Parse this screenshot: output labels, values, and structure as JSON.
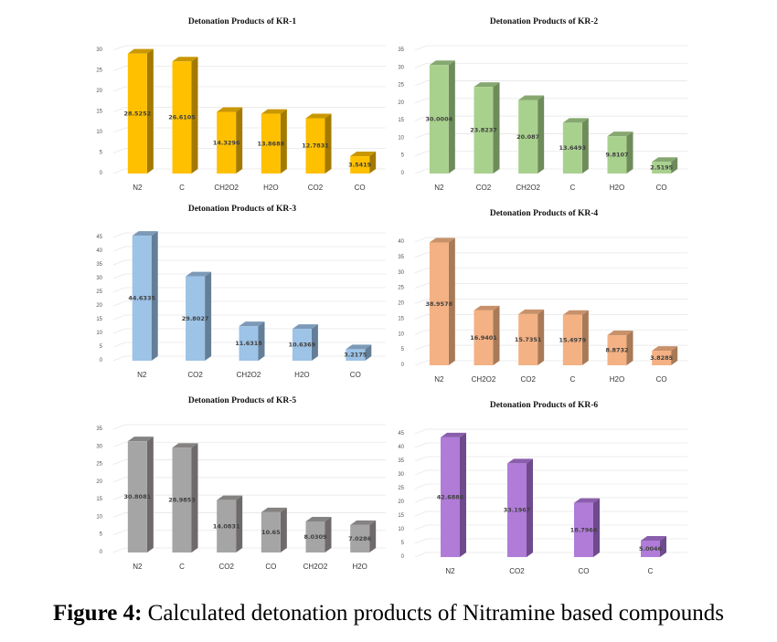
{
  "caption": {
    "label": "Figure 4:",
    "text": " Calculated detonation products of Nitramine based compounds"
  },
  "chart_data": [
    {
      "type": "bar",
      "title": "Detonation Products of KR-1",
      "categories": [
        "N2",
        "C",
        "CH2O2",
        "H2O",
        "CO2",
        "CO"
      ],
      "values": [
        28.5252,
        26.6105,
        14.3296,
        13.8688,
        12.7831,
        3.5419
      ],
      "ylim": [
        0,
        30
      ],
      "yticks": [
        0,
        5,
        10,
        15,
        20,
        25,
        30
      ],
      "colors": {
        "front": "#FFC000",
        "side": "#A37A00",
        "top": "#C99700"
      },
      "grid": true,
      "legend": "none"
    },
    {
      "type": "bar",
      "title": "Detonation Products of KR-2",
      "categories": [
        "N2",
        "CO2",
        "CH2O2",
        "C",
        "H2O",
        "CO"
      ],
      "values": [
        30.0004,
        23.8237,
        20.087,
        13.6493,
        9.8107,
        2.5195
      ],
      "ylim": [
        0,
        35
      ],
      "yticks": [
        0,
        5,
        10,
        15,
        20,
        25,
        30,
        35
      ],
      "colors": {
        "front": "#A9D18E",
        "side": "#6E8B5A",
        "top": "#86A870"
      },
      "grid": true,
      "legend": "none"
    },
    {
      "type": "bar",
      "title": "Detonation Products of KR-3",
      "categories": [
        "N2",
        "CO2",
        "CH2O2",
        "H2O",
        "CO"
      ],
      "values": [
        44.6335,
        29.8027,
        11.6318,
        10.6369,
        3.2175
      ],
      "ylim": [
        0,
        45
      ],
      "yticks": [
        0,
        5,
        10,
        15,
        20,
        25,
        30,
        35,
        40,
        45
      ],
      "colors": {
        "front": "#9DC3E6",
        "side": "#647E98",
        "top": "#7C9AB8"
      },
      "grid": true,
      "legend": "none"
    },
    {
      "type": "bar",
      "title": "Detonation Products of KR-4",
      "categories": [
        "N2",
        "CH2O2",
        "CO2",
        "C",
        "H2O",
        "CO"
      ],
      "values": [
        38.9578,
        16.9401,
        15.7351,
        15.4979,
        8.8732,
        3.8285
      ],
      "ylim": [
        0,
        40
      ],
      "yticks": [
        0,
        5,
        10,
        15,
        20,
        25,
        30,
        35,
        40
      ],
      "colors": {
        "front": "#F4B183",
        "side": "#A87A57",
        "top": "#C8916A"
      },
      "grid": true,
      "legend": "none"
    },
    {
      "type": "bar",
      "title": "Detonation Products of KR-5",
      "categories": [
        "N2",
        "C",
        "CO2",
        "CO",
        "CH2O2",
        "H2O"
      ],
      "values": [
        30.8081,
        28.9853,
        14.0831,
        10.65,
        8.0309,
        7.0286
      ],
      "ylim": [
        0,
        35
      ],
      "yticks": [
        0,
        5,
        10,
        15,
        20,
        25,
        30,
        35
      ],
      "colors": {
        "front": "#A5A5A5",
        "side": "#6E6A6A",
        "top": "#858282"
      },
      "grid": true,
      "legend": "none"
    },
    {
      "type": "bar",
      "title": "Detonation Products of KR-6",
      "categories": [
        "N2",
        "CO2",
        "CO",
        "C"
      ],
      "values": [
        42.6886,
        33.1967,
        18.7966,
        5.0046
      ],
      "ylim": [
        0,
        45
      ],
      "yticks": [
        0,
        5,
        10,
        15,
        20,
        25,
        30,
        35,
        40,
        45
      ],
      "colors": {
        "front": "#B07CD8",
        "side": "#6F4A8C",
        "top": "#8A5EAD"
      },
      "grid": true,
      "legend": "none"
    }
  ]
}
